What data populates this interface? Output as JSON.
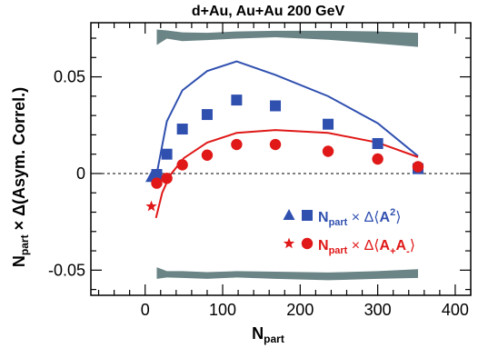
{
  "chart_data": {
    "type": "scatter",
    "title": "d+Au, Au+Au 200 GeV",
    "xlabel": "N",
    "xlabel_sub": "part",
    "ylabel_n": "N",
    "ylabel_sub": "part",
    "ylabel_rest": " × Δ(Asym. Correl.)",
    "xlim": [
      -70,
      420
    ],
    "ylim": [
      -0.063,
      0.078
    ],
    "x_ticks": [
      0,
      100,
      200,
      300,
      400
    ],
    "x_tick_labels": [
      "0",
      "100",
      "200",
      "300",
      "400"
    ],
    "y_ticks": [
      -0.05,
      0,
      0.05
    ],
    "y_tick_labels": [
      "-0.05",
      "0",
      "0.05"
    ],
    "zero_line": "dashed",
    "grid": false,
    "legend_position": "bottom-right",
    "series": [
      {
        "name": "A2",
        "color": "#3050b0",
        "marker": "square",
        "x": [
          15,
          28,
          48,
          80,
          118,
          168,
          236,
          300,
          352
        ],
        "y": [
          -0.0005,
          0.01,
          0.023,
          0.0305,
          0.038,
          0.035,
          0.0255,
          0.0155,
          0.0025
        ]
      },
      {
        "name": "A2-dAu",
        "color": "#3050b0",
        "marker": "triangle",
        "x": [
          8
        ],
        "y": [
          -0.002
        ]
      },
      {
        "name": "A2-band",
        "color": "#3050b0",
        "marker": "line",
        "x": [
          10,
          16,
          28,
          48,
          80,
          118,
          168,
          236,
          300,
          352
        ],
        "y": [
          -0.005,
          0.002,
          0.027,
          0.043,
          0.053,
          0.058,
          0.051,
          0.04,
          0.026,
          0.009
        ]
      },
      {
        "name": "A+A-",
        "color": "#e01818",
        "marker": "circle",
        "x": [
          15,
          28,
          48,
          80,
          118,
          168,
          236,
          300,
          352
        ],
        "y": [
          -0.005,
          -0.0025,
          0.0045,
          0.0095,
          0.015,
          0.015,
          0.0115,
          0.0075,
          0.0035
        ]
      },
      {
        "name": "A+A- dAu",
        "color": "#e01818",
        "marker": "star",
        "x": [
          8
        ],
        "y": [
          -0.017
        ]
      },
      {
        "name": "A+A- band",
        "color": "#e01818",
        "marker": "line",
        "x": [
          14,
          22,
          32,
          50,
          80,
          118,
          168,
          236,
          300,
          352
        ],
        "y": [
          -0.023,
          -0.01,
          -0.001,
          0.008,
          0.016,
          0.021,
          0.0225,
          0.021,
          0.016,
          0.0085
        ]
      }
    ],
    "systematic_bands": {
      "color": "#6b8486",
      "top": {
        "x": [
          15,
          28,
          48,
          80,
          118,
          168,
          236,
          300,
          352
        ],
        "upper": [
          0.0745,
          0.074,
          0.073,
          0.0728,
          0.0735,
          0.0738,
          0.0738,
          0.0735,
          0.0728
        ],
        "lower": [
          0.0665,
          0.0698,
          0.0685,
          0.069,
          0.0698,
          0.0705,
          0.0692,
          0.0672,
          0.0655
        ]
      },
      "bottom": {
        "x": [
          15,
          28,
          48,
          80,
          118,
          168,
          236,
          300,
          352
        ],
        "upper": [
          -0.0485,
          -0.0505,
          -0.0505,
          -0.051,
          -0.0505,
          -0.0508,
          -0.0512,
          -0.0505,
          -0.0495
        ],
        "lower": [
          -0.0545,
          -0.0538,
          -0.054,
          -0.0545,
          -0.0538,
          -0.0545,
          -0.0552,
          -0.0545,
          -0.054
        ]
      }
    },
    "legend": [
      {
        "markers": [
          "triangle",
          "square"
        ],
        "color": "#3050b0",
        "text_n": "N",
        "text_sub": "part",
        "text_op": " × Δ⟨",
        "text_a": "A",
        "text_sup": "2",
        "text_close": "⟩"
      },
      {
        "markers": [
          "star",
          "circle"
        ],
        "color": "#e01818",
        "text_n": "N",
        "text_sub": "part",
        "text_op": " × Δ⟨",
        "text_a1": "A",
        "text_sub1": "+",
        "text_a2": "A",
        "text_sub2": "-",
        "text_close": "⟩"
      }
    ]
  }
}
